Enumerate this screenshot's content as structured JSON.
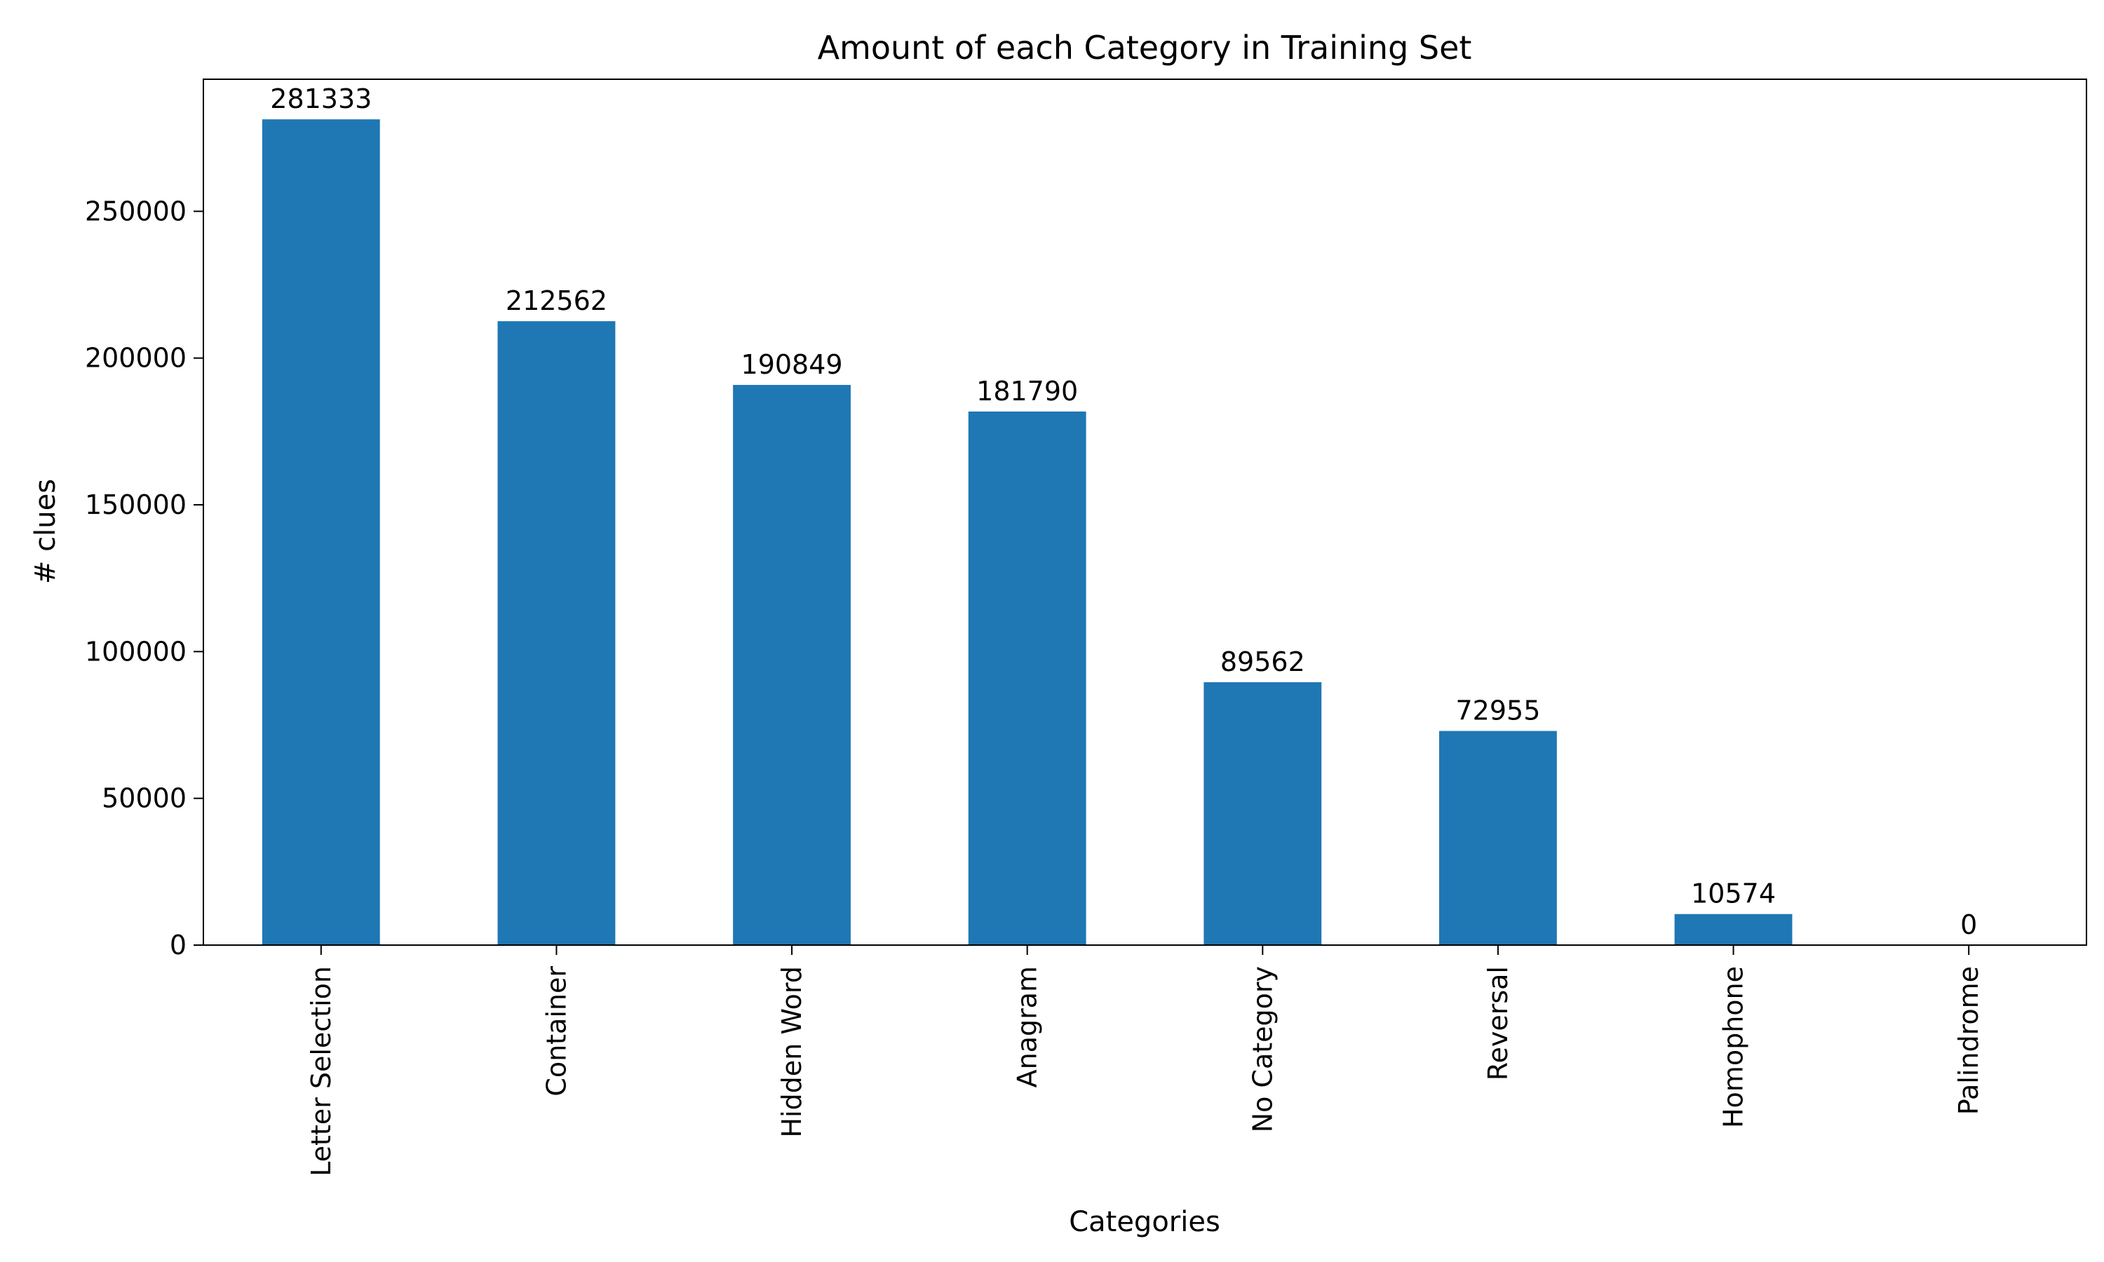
{
  "chart_data": {
    "type": "bar",
    "title": "Amount of each Category in Training Set",
    "xlabel": "Categories",
    "ylabel": "# clues",
    "categories": [
      "Letter Selection",
      "Container",
      "Hidden Word",
      "Anagram",
      "No Category",
      "Reversal",
      "Homophone",
      "Palindrome"
    ],
    "values": [
      281333,
      212562,
      190849,
      181790,
      89562,
      72955,
      10574,
      0
    ],
    "data_labels": [
      "281333",
      "212562",
      "190849",
      "181790",
      "89562",
      "72955",
      "10574",
      "0"
    ],
    "ylim": [
      0,
      295000
    ],
    "yticks": [
      0,
      50000,
      100000,
      150000,
      200000,
      250000
    ],
    "ytick_labels": [
      "0",
      "50000",
      "100000",
      "150000",
      "200000",
      "250000"
    ],
    "bar_color": "#1f77b4",
    "grid": false,
    "legend": "none"
  }
}
